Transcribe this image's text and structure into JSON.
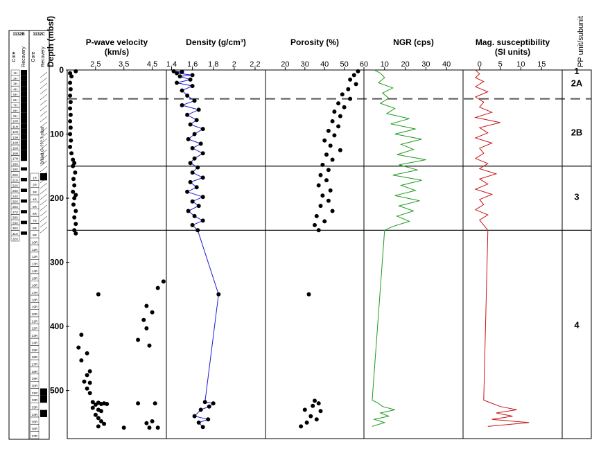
{
  "depth_axis": {
    "label": "Depth (mbsf)",
    "range": [
      0,
      575
    ],
    "ticks": [
      0,
      100,
      200,
      300,
      400,
      500
    ]
  },
  "core_columns": {
    "hole_b": {
      "title": "1132B",
      "core_label": "Core",
      "recovery_label": "Recovery"
    },
    "hole_c": {
      "title": "1132C",
      "core_label": "Core",
      "recovery_label": "Recovery"
    },
    "drill_note_b": "Drilled 0–???? mbsf",
    "drill_note_c": "Drilled 0–???.? mbsf",
    "cores_b": [
      "1H",
      "2H",
      "3H",
      "4H",
      "5H",
      "6H",
      "7H",
      "8H",
      "9H",
      "10H",
      "11H",
      "12H",
      "13H",
      "14H",
      "15H",
      "16H",
      "17H",
      "18X",
      "19X",
      "20X",
      "21X",
      "22X",
      "23X",
      "24X",
      "25X",
      "26X",
      "27X",
      "28X",
      "29X",
      "30X",
      "31X",
      "32X"
    ],
    "cores_c": [
      "1R",
      "2R",
      "3R",
      "4R",
      "5R",
      "6R",
      "7R",
      "8R",
      "9R",
      "10R",
      "11R",
      "12R",
      "13R",
      "14R",
      "15R",
      "16R",
      "17R",
      "18R",
      "19R",
      "20R",
      "21R",
      "22R",
      "23R",
      "24R",
      "25R",
      "26R",
      "27R",
      "28R",
      "29R",
      "30R",
      "31R",
      "32R",
      "33R",
      "34R",
      "35R",
      "36R",
      "37R"
    ]
  },
  "chart_data": [
    {
      "type": "scatter",
      "title": "P-wave velocity",
      "units": "(km/s)",
      "xlim": [
        1.5,
        5.0
      ],
      "ticks": [
        "2.5",
        "3.5",
        "4.5"
      ],
      "color": "#000000",
      "series_note": "dense cluster ~1.6-1.7 km/s from 0-150 mbsf, ~1.7-1.85 km/s 150-255 mbsf",
      "points": [
        [
          1.8,
          2
        ],
        [
          1.6,
          5
        ],
        [
          1.65,
          10
        ],
        [
          1.6,
          20
        ],
        [
          1.62,
          30
        ],
        [
          1.6,
          40
        ],
        [
          1.62,
          50
        ],
        [
          1.6,
          60
        ],
        [
          1.62,
          70
        ],
        [
          1.6,
          80
        ],
        [
          1.62,
          90
        ],
        [
          1.6,
          100
        ],
        [
          1.63,
          110
        ],
        [
          1.6,
          120
        ],
        [
          1.65,
          130
        ],
        [
          1.7,
          140
        ],
        [
          1.75,
          145
        ],
        [
          1.7,
          150
        ],
        [
          1.78,
          160
        ],
        [
          1.72,
          170
        ],
        [
          1.75,
          180
        ],
        [
          1.7,
          190
        ],
        [
          1.8,
          195
        ],
        [
          1.75,
          200
        ],
        [
          1.72,
          210
        ],
        [
          1.8,
          220
        ],
        [
          1.75,
          230
        ],
        [
          1.8,
          240
        ],
        [
          1.75,
          250
        ],
        [
          1.8,
          255
        ],
        [
          2.6,
          350
        ],
        [
          4.9,
          330
        ],
        [
          4.7,
          340
        ],
        [
          4.3,
          368
        ],
        [
          4.5,
          378
        ],
        [
          4.2,
          390
        ],
        [
          4.3,
          403
        ],
        [
          4.0,
          421
        ],
        [
          4.4,
          430
        ],
        [
          2.0,
          413
        ],
        [
          1.9,
          433
        ],
        [
          2.2,
          442
        ],
        [
          2.0,
          453
        ],
        [
          2.3,
          470
        ],
        [
          2.2,
          476
        ],
        [
          2.1,
          486
        ],
        [
          2.3,
          488
        ],
        [
          2.2,
          497
        ],
        [
          2.3,
          504
        ],
        [
          2.4,
          518
        ],
        [
          2.5,
          522
        ],
        [
          2.6,
          519
        ],
        [
          2.7,
          521
        ],
        [
          2.8,
          520
        ],
        [
          2.9,
          521
        ],
        [
          2.4,
          527
        ],
        [
          2.6,
          530
        ],
        [
          2.7,
          532
        ],
        [
          2.5,
          538
        ],
        [
          2.6,
          543
        ],
        [
          2.7,
          548
        ],
        [
          2.8,
          552
        ],
        [
          2.6,
          556
        ],
        [
          3.5,
          558
        ],
        [
          4.0,
          520
        ],
        [
          4.6,
          520
        ],
        [
          4.5,
          548
        ],
        [
          4.3,
          551
        ],
        [
          4.7,
          558
        ],
        [
          4.4,
          558
        ]
      ]
    },
    {
      "type": "line+scatter",
      "title": "Density (g/cm³)",
      "xlim": [
        1.35,
        2.3
      ],
      "ticks": [
        "1.4",
        "1.6",
        "1.8",
        "2",
        "2.2"
      ],
      "line_color": "#1a1ad4",
      "points": [
        [
          1.42,
          2
        ],
        [
          1.5,
          3
        ],
        [
          1.45,
          5
        ],
        [
          1.6,
          8
        ],
        [
          1.48,
          10
        ],
        [
          1.58,
          15
        ],
        [
          1.45,
          20
        ],
        [
          1.6,
          25
        ],
        [
          1.5,
          32
        ],
        [
          1.55,
          40
        ],
        [
          1.62,
          48
        ],
        [
          1.5,
          55
        ],
        [
          1.66,
          62
        ],
        [
          1.55,
          70
        ],
        [
          1.64,
          78
        ],
        [
          1.58,
          85
        ],
        [
          1.7,
          92
        ],
        [
          1.62,
          100
        ],
        [
          1.56,
          108
        ],
        [
          1.68,
          115
        ],
        [
          1.6,
          122
        ],
        [
          1.7,
          130
        ],
        [
          1.62,
          138
        ],
        [
          1.58,
          145
        ],
        [
          1.65,
          152
        ],
        [
          1.6,
          160
        ],
        [
          1.7,
          168
        ],
        [
          1.58,
          175
        ],
        [
          1.64,
          183
        ],
        [
          1.55,
          190
        ],
        [
          1.7,
          198
        ],
        [
          1.6,
          205
        ],
        [
          1.66,
          212
        ],
        [
          1.56,
          220
        ],
        [
          1.62,
          228
        ],
        [
          1.7,
          235
        ],
        [
          1.6,
          242
        ],
        [
          1.65,
          250
        ],
        [
          1.85,
          350
        ],
        [
          1.72,
          518
        ],
        [
          1.8,
          520
        ],
        [
          1.76,
          525
        ],
        [
          1.68,
          530
        ],
        [
          1.62,
          540
        ],
        [
          1.75,
          545
        ],
        [
          1.66,
          550
        ],
        [
          1.7,
          557
        ]
      ]
    },
    {
      "type": "scatter",
      "title": "Porosity (%)",
      "xlim": [
        10,
        60
      ],
      "ticks": [
        "20",
        "30",
        "40",
        "50",
        "60"
      ],
      "color": "#000000",
      "points": [
        [
          57,
          2
        ],
        [
          55,
          8
        ],
        [
          53,
          15
        ],
        [
          56,
          22
        ],
        [
          52,
          30
        ],
        [
          49,
          38
        ],
        [
          53,
          45
        ],
        [
          47,
          52
        ],
        [
          50,
          58
        ],
        [
          45,
          65
        ],
        [
          48,
          72
        ],
        [
          44,
          80
        ],
        [
          47,
          88
        ],
        [
          42,
          95
        ],
        [
          45,
          102
        ],
        [
          40,
          110
        ],
        [
          43,
          118
        ],
        [
          48,
          125
        ],
        [
          41,
          132
        ],
        [
          44,
          140
        ],
        [
          39,
          148
        ],
        [
          42,
          156
        ],
        [
          38,
          164
        ],
        [
          41,
          172
        ],
        [
          37,
          180
        ],
        [
          43,
          188
        ],
        [
          39,
          196
        ],
        [
          42,
          204
        ],
        [
          38,
          212
        ],
        [
          44,
          220
        ],
        [
          36,
          228
        ],
        [
          40,
          236
        ],
        [
          35,
          242
        ],
        [
          37,
          250
        ],
        [
          32,
          350
        ],
        [
          35,
          516
        ],
        [
          37,
          520
        ],
        [
          34,
          524
        ],
        [
          30,
          530
        ],
        [
          38,
          532
        ],
        [
          33,
          540
        ],
        [
          36,
          545
        ],
        [
          31,
          550
        ],
        [
          28,
          556
        ]
      ]
    },
    {
      "type": "line",
      "title": "NGR (cps)",
      "xlim": [
        0,
        48
      ],
      "ticks": [
        "10",
        "20",
        "30",
        "40"
      ],
      "color": "#1d9a1d",
      "points": [
        [
          5,
          0
        ],
        [
          8,
          5
        ],
        [
          10,
          12
        ],
        [
          7,
          20
        ],
        [
          14,
          28
        ],
        [
          9,
          36
        ],
        [
          12,
          44
        ],
        [
          8,
          52
        ],
        [
          15,
          60
        ],
        [
          11,
          68
        ],
        [
          22,
          76
        ],
        [
          13,
          84
        ],
        [
          25,
          92
        ],
        [
          15,
          100
        ],
        [
          28,
          108
        ],
        [
          18,
          116
        ],
        [
          24,
          124
        ],
        [
          16,
          132
        ],
        [
          30,
          140
        ],
        [
          17,
          148
        ],
        [
          26,
          156
        ],
        [
          14,
          164
        ],
        [
          28,
          172
        ],
        [
          18,
          180
        ],
        [
          25,
          188
        ],
        [
          15,
          196
        ],
        [
          27,
          204
        ],
        [
          17,
          212
        ],
        [
          24,
          220
        ],
        [
          16,
          228
        ],
        [
          22,
          236
        ],
        [
          14,
          244
        ],
        [
          10,
          250
        ],
        [
          4,
          515
        ],
        [
          7,
          520
        ],
        [
          9,
          525
        ],
        [
          15,
          530
        ],
        [
          8,
          535
        ],
        [
          12,
          540
        ],
        [
          5,
          545
        ],
        [
          10,
          550
        ],
        [
          4,
          556
        ]
      ]
    },
    {
      "type": "line",
      "title": "Mag. susceptibility",
      "units": "(SI units)",
      "xlim": [
        -4,
        20
      ],
      "ticks": [
        "0",
        "5",
        "10",
        "15"
      ],
      "color": "#c81414",
      "points": [
        [
          -1,
          0
        ],
        [
          0,
          6
        ],
        [
          -1,
          12
        ],
        [
          1,
          18
        ],
        [
          -1,
          26
        ],
        [
          2,
          34
        ],
        [
          -1,
          42
        ],
        [
          1,
          50
        ],
        [
          0,
          58
        ],
        [
          3,
          66
        ],
        [
          -1,
          74
        ],
        [
          5,
          82
        ],
        [
          0,
          90
        ],
        [
          2,
          98
        ],
        [
          -1,
          106
        ],
        [
          3,
          114
        ],
        [
          0,
          122
        ],
        [
          1,
          130
        ],
        [
          -1,
          138
        ],
        [
          2,
          146
        ],
        [
          0,
          154
        ],
        [
          4,
          162
        ],
        [
          0,
          170
        ],
        [
          2,
          178
        ],
        [
          -1,
          186
        ],
        [
          3,
          194
        ],
        [
          0,
          202
        ],
        [
          1,
          210
        ],
        [
          -1,
          218
        ],
        [
          2,
          226
        ],
        [
          0,
          234
        ],
        [
          1,
          242
        ],
        [
          2,
          250
        ],
        [
          1,
          515
        ],
        [
          3,
          520
        ],
        [
          5,
          525
        ],
        [
          9,
          530
        ],
        [
          4,
          535
        ],
        [
          8,
          540
        ],
        [
          3,
          545
        ],
        [
          12,
          550
        ],
        [
          2,
          556
        ]
      ]
    },
    {
      "type": "table",
      "title": "PP unit/subunit",
      "boundaries": [
        0,
        45,
        150,
        250
      ],
      "units": [
        {
          "label": "1",
          "depth": 1
        },
        {
          "label": "2A",
          "depth": 20
        },
        {
          "label": "2B",
          "depth": 97
        },
        {
          "label": "3",
          "depth": 197
        },
        {
          "label": "4",
          "depth": 397
        }
      ]
    }
  ]
}
